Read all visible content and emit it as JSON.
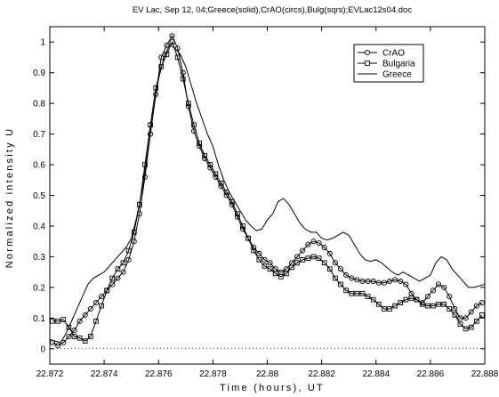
{
  "chart_data": {
    "type": "line",
    "title": "EV Lac, Sep 12, 04;Greece(solid),CrAO(circs),Bulg(sqrs);EVLac12s04.doc",
    "xlabel": "Time (hours), UT",
    "ylabel": "Normalized intensity U",
    "xlim": [
      22.872,
      22.888
    ],
    "ylim": [
      -0.05,
      1.05
    ],
    "xticks": [
      22.872,
      22.874,
      22.876,
      22.878,
      22.88,
      22.882,
      22.884,
      22.886,
      22.888
    ],
    "yticks": [
      0,
      0.1,
      0.2,
      0.3,
      0.4,
      0.5,
      0.6,
      0.7,
      0.8,
      0.9,
      1
    ],
    "xtick_labels": [
      "22.872",
      "22.874",
      "22.876",
      "22.878",
      "22.88",
      "22.882",
      "22.884",
      "22.886",
      "22.888"
    ],
    "ytick_labels": [
      "0",
      "0.1",
      "0.2",
      "0.3",
      "0.4",
      "0.5",
      "0.6",
      "0.7",
      "0.8",
      "0.9",
      "1"
    ],
    "zero_line": "dotted",
    "grid": false,
    "legend_position": "top-right",
    "series": [
      {
        "name": "CrAO",
        "marker": "circle",
        "x": [
          22.8721,
          22.8723,
          22.8725,
          22.8727,
          22.8729,
          22.8731,
          22.8733,
          22.8735,
          22.8737,
          22.8739,
          22.8741,
          22.8743,
          22.8745,
          22.8747,
          22.8749,
          22.8751,
          22.8753,
          22.8755,
          22.8757,
          22.8759,
          22.8761,
          22.8763,
          22.8765,
          22.8767,
          22.8769,
          22.8771,
          22.8773,
          22.8775,
          22.8777,
          22.8779,
          22.8781,
          22.8783,
          22.8785,
          22.8787,
          22.8789,
          22.8791,
          22.8793,
          22.8795,
          22.8797,
          22.8799,
          22.8801,
          22.8803,
          22.8805,
          22.8807,
          22.8809,
          22.8811,
          22.8813,
          22.8815,
          22.8817,
          22.8819,
          22.8821,
          22.8823,
          22.8825,
          22.8827,
          22.8829,
          22.8831,
          22.8833,
          22.8835,
          22.8837,
          22.8839,
          22.8841,
          22.8843,
          22.8845,
          22.8847,
          22.8849,
          22.8851,
          22.8853,
          22.8855,
          22.8857,
          22.8859,
          22.8861,
          22.8863,
          22.8865,
          22.8867,
          22.8869,
          22.8871,
          22.8873,
          22.8875,
          22.8877,
          22.8879
        ],
        "y": [
          0.02,
          0.01,
          0.02,
          0.04,
          0.06,
          0.09,
          0.11,
          0.13,
          0.15,
          0.17,
          0.19,
          0.21,
          0.23,
          0.25,
          0.29,
          0.35,
          0.44,
          0.56,
          0.7,
          0.83,
          0.95,
          0.99,
          1.02,
          0.98,
          0.9,
          0.79,
          0.71,
          0.66,
          0.62,
          0.59,
          0.56,
          0.53,
          0.5,
          0.47,
          0.43,
          0.39,
          0.36,
          0.33,
          0.31,
          0.29,
          0.28,
          0.26,
          0.25,
          0.26,
          0.28,
          0.3,
          0.32,
          0.34,
          0.35,
          0.345,
          0.33,
          0.31,
          0.28,
          0.26,
          0.24,
          0.23,
          0.225,
          0.22,
          0.22,
          0.22,
          0.215,
          0.215,
          0.22,
          0.225,
          0.22,
          0.21,
          0.18,
          0.16,
          0.15,
          0.17,
          0.19,
          0.21,
          0.2,
          0.17,
          0.13,
          0.1,
          0.1,
          0.12,
          0.14,
          0.15
        ]
      },
      {
        "name": "Bulgaria",
        "marker": "square",
        "x": [
          22.8721,
          22.8723,
          22.8725,
          22.8727,
          22.8729,
          22.8731,
          22.8733,
          22.8735,
          22.8737,
          22.8739,
          22.8741,
          22.8743,
          22.8745,
          22.8747,
          22.8749,
          22.8751,
          22.8753,
          22.8755,
          22.8757,
          22.8759,
          22.8761,
          22.8763,
          22.8765,
          22.8767,
          22.8769,
          22.8771,
          22.8773,
          22.8775,
          22.8777,
          22.8779,
          22.8781,
          22.8783,
          22.8785,
          22.8787,
          22.8789,
          22.8791,
          22.8793,
          22.8795,
          22.8797,
          22.8799,
          22.8801,
          22.8803,
          22.8805,
          22.8807,
          22.8809,
          22.8811,
          22.8813,
          22.8815,
          22.8817,
          22.8819,
          22.8821,
          22.8823,
          22.8825,
          22.8827,
          22.8829,
          22.8831,
          22.8833,
          22.8835,
          22.8837,
          22.8839,
          22.8841,
          22.8843,
          22.8845,
          22.8847,
          22.8849,
          22.8851,
          22.8853,
          22.8855,
          22.8857,
          22.8859,
          22.8861,
          22.8863,
          22.8865,
          22.8867,
          22.8869,
          22.8871,
          22.8873,
          22.8875,
          22.8877,
          22.8879
        ],
        "y": [
          0.09,
          0.09,
          0.095,
          0.07,
          0.04,
          0.035,
          0.025,
          0.04,
          0.09,
          0.14,
          0.19,
          0.23,
          0.26,
          0.28,
          0.32,
          0.38,
          0.47,
          0.6,
          0.73,
          0.85,
          0.92,
          0.96,
          1.0,
          0.95,
          0.88,
          0.8,
          0.73,
          0.67,
          0.63,
          0.6,
          0.57,
          0.54,
          0.51,
          0.48,
          0.44,
          0.4,
          0.36,
          0.32,
          0.29,
          0.27,
          0.26,
          0.245,
          0.235,
          0.245,
          0.265,
          0.28,
          0.29,
          0.295,
          0.3,
          0.295,
          0.28,
          0.26,
          0.23,
          0.21,
          0.19,
          0.18,
          0.18,
          0.18,
          0.17,
          0.16,
          0.145,
          0.13,
          0.13,
          0.14,
          0.15,
          0.16,
          0.165,
          0.16,
          0.145,
          0.14,
          0.14,
          0.145,
          0.145,
          0.13,
          0.11,
          0.08,
          0.065,
          0.07,
          0.09,
          0.11
        ]
      },
      {
        "name": "Greece",
        "marker": "none",
        "x": [
          22.872,
          22.8722,
          22.8724,
          22.8726,
          22.8728,
          22.873,
          22.8732,
          22.8734,
          22.8736,
          22.8738,
          22.874,
          22.8742,
          22.8744,
          22.8746,
          22.8748,
          22.875,
          22.8752,
          22.8754,
          22.8756,
          22.8758,
          22.876,
          22.8762,
          22.8764,
          22.8766,
          22.8768,
          22.877,
          22.8772,
          22.8774,
          22.8776,
          22.8778,
          22.878,
          22.8782,
          22.8784,
          22.8786,
          22.8788,
          22.879,
          22.8792,
          22.8794,
          22.8796,
          22.8798,
          22.88,
          22.8802,
          22.8804,
          22.8806,
          22.8808,
          22.881,
          22.8812,
          22.8814,
          22.8816,
          22.8818,
          22.882,
          22.8822,
          22.8824,
          22.8826,
          22.8828,
          22.883,
          22.8832,
          22.8834,
          22.8836,
          22.8838,
          22.884,
          22.8842,
          22.8844,
          22.8846,
          22.8848,
          22.885,
          22.8852,
          22.8854,
          22.8856,
          22.8858,
          22.886,
          22.8862,
          22.8864,
          22.8866,
          22.8868,
          22.887,
          22.8872,
          22.8874,
          22.8876,
          22.8878,
          22.888
        ],
        "y": [
          0.03,
          0.025,
          0.02,
          0.05,
          0.09,
          0.13,
          0.17,
          0.21,
          0.23,
          0.24,
          0.25,
          0.27,
          0.29,
          0.31,
          0.33,
          0.36,
          0.43,
          0.52,
          0.64,
          0.77,
          0.88,
          0.95,
          0.99,
          0.98,
          0.96,
          0.92,
          0.86,
          0.8,
          0.75,
          0.7,
          0.66,
          0.6,
          0.55,
          0.51,
          0.48,
          0.45,
          0.42,
          0.4,
          0.385,
          0.39,
          0.42,
          0.44,
          0.48,
          0.49,
          0.47,
          0.44,
          0.41,
          0.39,
          0.38,
          0.38,
          0.36,
          0.355,
          0.36,
          0.37,
          0.38,
          0.37,
          0.34,
          0.31,
          0.29,
          0.285,
          0.29,
          0.28,
          0.265,
          0.25,
          0.24,
          0.25,
          0.24,
          0.23,
          0.22,
          0.23,
          0.24,
          0.28,
          0.3,
          0.29,
          0.26,
          0.24,
          0.22,
          0.2,
          0.2,
          0.205,
          0.21
        ]
      }
    ]
  }
}
